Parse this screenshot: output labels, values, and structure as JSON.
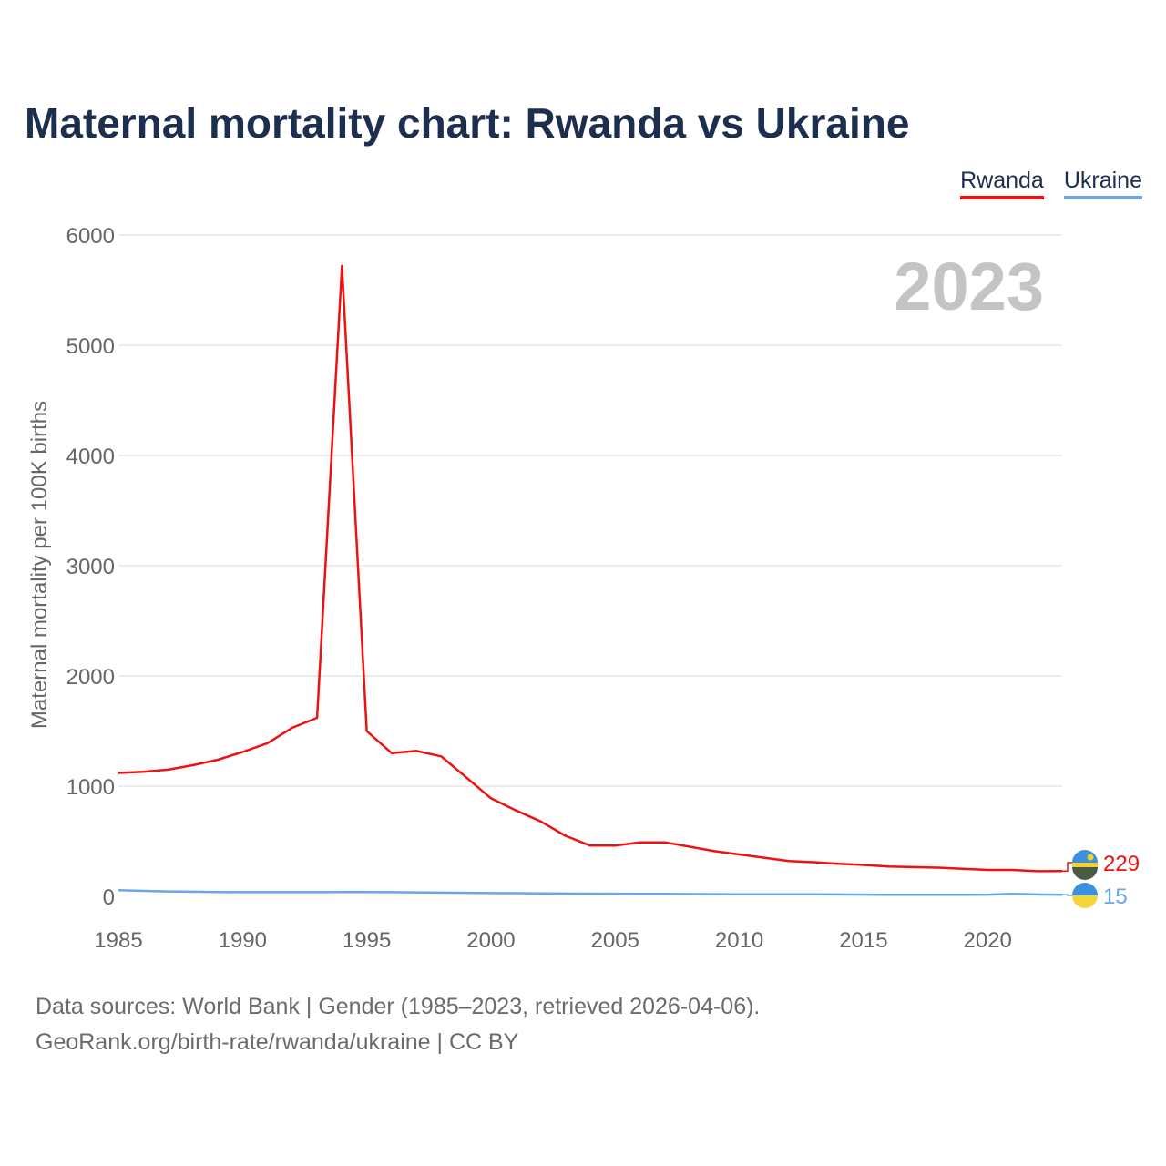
{
  "title": "Maternal mortality chart: Rwanda vs Ukraine",
  "legend": {
    "rwanda": "Rwanda",
    "ukraine": "Ukraine"
  },
  "year_label": "2023",
  "footer": {
    "line1": "Data sources: World Bank | Gender (1985–2023, retrieved 2026-04-06).",
    "line2": "GeoRank.org/birth-rate/rwanda/ukraine | CC BY"
  },
  "colors": {
    "rwanda": "#ee1111",
    "ukraine": "#6aa6e8",
    "title": "#1c2f4f",
    "grid": "#e6e6e6",
    "axis_text": "#666666",
    "year": "#c4c4c4"
  },
  "chart_data": {
    "type": "line",
    "ylabel": "Maternal mortality per 100K births",
    "xlabel": "",
    "xlim": [
      1985,
      2023
    ],
    "ylim": [
      0,
      6000
    ],
    "xticks": [
      1985,
      1990,
      1995,
      2000,
      2005,
      2010,
      2015,
      2020
    ],
    "yticks": [
      0,
      1000,
      2000,
      3000,
      4000,
      5000,
      6000
    ],
    "x": [
      1985,
      1986,
      1987,
      1988,
      1989,
      1990,
      1991,
      1992,
      1993,
      1994,
      1995,
      1996,
      1997,
      1998,
      1999,
      2000,
      2001,
      2002,
      2003,
      2004,
      2005,
      2006,
      2007,
      2008,
      2009,
      2010,
      2011,
      2012,
      2013,
      2014,
      2015,
      2016,
      2017,
      2018,
      2019,
      2020,
      2021,
      2022,
      2023
    ],
    "series": [
      {
        "name": "Rwanda",
        "end_label": "229",
        "values": [
          1120,
          1130,
          1150,
          1190,
          1240,
          1310,
          1390,
          1530,
          1620,
          5720,
          1500,
          1300,
          1320,
          1270,
          1080,
          890,
          780,
          680,
          550,
          460,
          460,
          490,
          490,
          450,
          410,
          380,
          350,
          320,
          310,
          295,
          285,
          270,
          265,
          260,
          250,
          240,
          240,
          228,
          229
        ]
      },
      {
        "name": "Ukraine",
        "end_label": "15",
        "values": [
          55,
          50,
          45,
          42,
          40,
          38,
          38,
          38,
          38,
          40,
          40,
          38,
          36,
          34,
          32,
          30,
          29,
          27,
          26,
          25,
          24,
          23,
          22,
          21,
          20,
          19,
          18,
          18,
          18,
          17,
          16,
          15,
          14,
          14,
          15,
          16,
          23,
          17,
          15
        ]
      }
    ]
  }
}
